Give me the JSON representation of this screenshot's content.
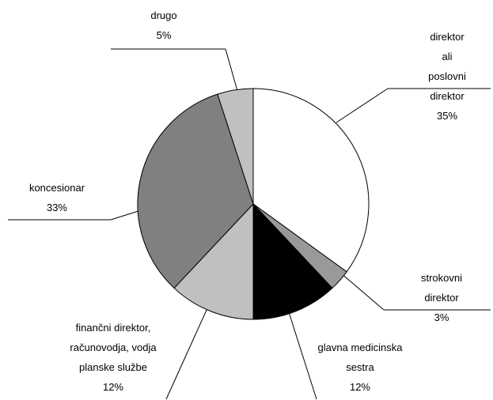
{
  "chart_data": {
    "type": "pie",
    "categories": [
      "direktor ali\nposlovni direktor",
      "strokovni direktor",
      "glavna medicinska\nsestra",
      "finančni direktor,\nračunovodja, vodja\nplanske službe",
      "koncesionar",
      "drugo"
    ],
    "values": [
      35,
      3,
      12,
      12,
      33,
      5
    ],
    "value_labels": [
      "35%",
      "3%",
      "12%",
      "12%",
      "33%",
      "5%"
    ],
    "colors": [
      "#ffffff",
      "#999999",
      "#000000",
      "#c0c0c0",
      "#808080",
      "#c0c0c0"
    ]
  }
}
